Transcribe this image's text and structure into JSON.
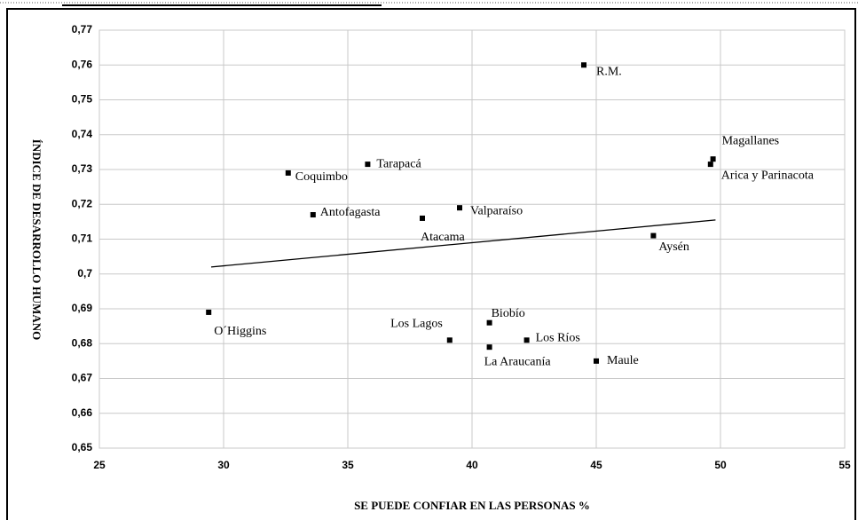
{
  "chart_data": {
    "type": "scatter",
    "xlabel": "SE PUEDE CONFIAR EN LAS PERSONAS %",
    "ylabel": "ÍNDICE DE DESARROLLO HUMANO",
    "color": "#000000",
    "labels": [
      "R.M.",
      "Magallanes",
      "Arica y Parinacota",
      "Tarapacá",
      "Coquimbo",
      "Antofagasta",
      "Atacama",
      "Valparaíso",
      "Aysén",
      "O´Higgins",
      "Biobío",
      "Los Lagos",
      "Los Ríos",
      "La Araucanía",
      "Maule"
    ],
    "x": [
      44.5,
      49.7,
      49.6,
      35.8,
      32.6,
      33.6,
      38.0,
      39.5,
      47.3,
      29.4,
      40.7,
      39.1,
      42.2,
      40.7,
      45.0
    ],
    "y": [
      0.76,
      0.733,
      0.7315,
      0.7315,
      0.729,
      0.717,
      0.716,
      0.719,
      0.711,
      0.689,
      0.686,
      0.681,
      0.681,
      0.679,
      0.675
    ],
    "trendline": {
      "x": [
        29.5,
        49.8
      ],
      "y": [
        0.702,
        0.7155
      ]
    },
    "xlim": [
      25,
      55
    ],
    "xticks": [
      25,
      30,
      35,
      40,
      45,
      50,
      55
    ],
    "ylim": [
      0.65,
      0.77
    ],
    "yticks": [
      {
        "value": 0.65,
        "label": "0,65"
      },
      {
        "value": 0.66,
        "label": "0,66"
      },
      {
        "value": 0.67,
        "label": "0,67"
      },
      {
        "value": 0.68,
        "label": "0,68"
      },
      {
        "value": 0.69,
        "label": "0,69"
      },
      {
        "value": 0.7,
        "label": "0,7"
      },
      {
        "value": 0.71,
        "label": "0,71"
      },
      {
        "value": 0.72,
        "label": "0,72"
      },
      {
        "value": 0.73,
        "label": "0,73"
      },
      {
        "value": 0.74,
        "label": "0,74"
      },
      {
        "value": 0.75,
        "label": "0,75"
      },
      {
        "value": 0.76,
        "label": "0,76"
      },
      {
        "value": 0.77,
        "label": "0,77"
      }
    ],
    "grid": true
  }
}
